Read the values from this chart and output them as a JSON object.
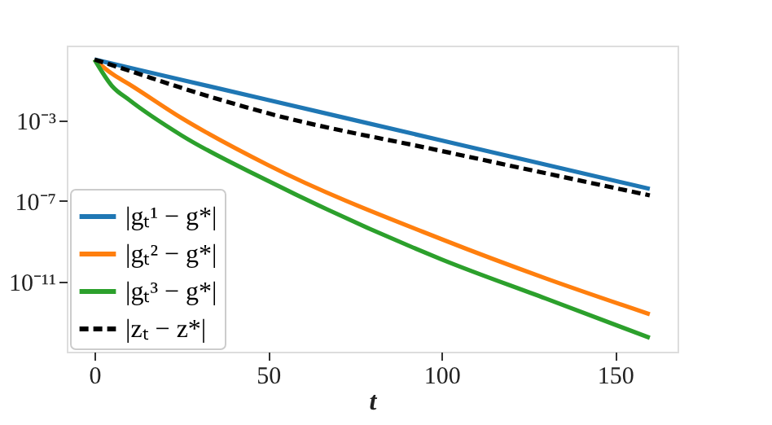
{
  "chart_data": {
    "type": "line",
    "xlabel": "t",
    "xlim": [
      -8,
      168
    ],
    "xticks": [
      0,
      50,
      100,
      150
    ],
    "ylim": [
      3.5e-15,
      4.9
    ],
    "log": true,
    "yticks": [
      {
        "value": 0.001,
        "label": "10⁻³"
      },
      {
        "value": 1e-07,
        "label": "10⁻⁷"
      },
      {
        "value": 1e-11,
        "label": "10⁻¹¹"
      }
    ],
    "grid": false,
    "legend": "bottom left",
    "series": [
      {
        "name": "|gₜ¹ − g*|",
        "color": "#1f77b4",
        "line_style": "solid",
        "x": [
          0,
          25,
          50,
          75,
          100,
          125,
          160
        ],
        "values": [
          1,
          0.1,
          0.01,
          0.001,
          0.0001,
          1e-05,
          4e-07
        ]
      },
      {
        "name": "|gₜ² − g*|",
        "color": "#ff7f0e",
        "line_style": "solid",
        "x": [
          0,
          5,
          10,
          25,
          50,
          100,
          130,
          160
        ],
        "values": [
          1,
          0.2,
          0.06,
          0.0013,
          6e-06,
          1.3e-09,
          1.5e-11,
          2.5e-13
        ]
      },
      {
        "name": "|gₜ³ − g*|",
        "color": "#2ca02c",
        "line_style": "solid",
        "x": [
          0,
          5,
          10,
          25,
          50,
          100,
          130,
          160
        ],
        "values": [
          1,
          0.05,
          0.01,
          0.00018,
          1e-06,
          1.3e-10,
          1.5e-12,
          1.7e-14
        ]
      },
      {
        "name": "|zₜ − z*|",
        "color": "#000000",
        "line_style": "dashed",
        "x": [
          0,
          10,
          25,
          50,
          100,
          160
        ],
        "values": [
          1,
          0.28,
          0.04,
          0.0022,
          3e-05,
          1.9e-07
        ]
      }
    ]
  }
}
